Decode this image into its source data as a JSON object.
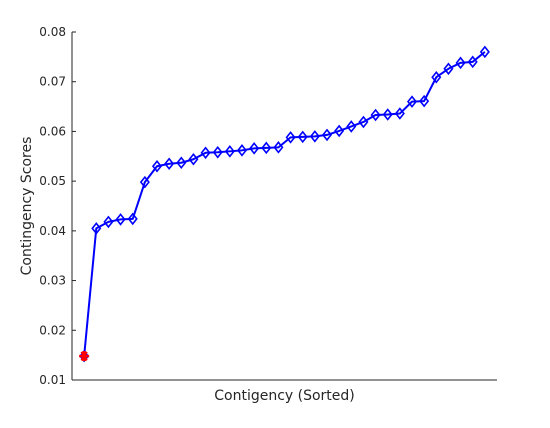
{
  "chart_data": {
    "type": "line",
    "xlabel": "Contigency (Sorted)",
    "ylabel": "Contingency Scores",
    "ylim": [
      0.01,
      0.08
    ],
    "yticks": [
      0.01,
      0.02,
      0.03,
      0.04,
      0.05,
      0.06,
      0.07,
      0.08
    ],
    "ytick_labels": [
      "0.01",
      "0.02",
      "0.03",
      "0.04",
      "0.05",
      "0.06",
      "0.07",
      "0.08"
    ],
    "xlim": [
      0,
      35
    ],
    "show_xticks": false,
    "grid": false,
    "box": "left-bottom",
    "colors": {
      "series": "#0000ff",
      "highlight": "#ff0000",
      "axis": "#262626"
    },
    "series": [
      {
        "marker": "diamond",
        "x": [
          1,
          2,
          3,
          4,
          5,
          6,
          7,
          8,
          9,
          10,
          11,
          12,
          13,
          14,
          15,
          16,
          17,
          18,
          19,
          20,
          21,
          22,
          23,
          24,
          25,
          26,
          27,
          28,
          29,
          30,
          31,
          32,
          33,
          34
        ],
        "values": [
          0.0148,
          0.0405,
          0.0418,
          0.0423,
          0.0424,
          0.0498,
          0.053,
          0.0535,
          0.0537,
          0.0544,
          0.0557,
          0.0558,
          0.056,
          0.0562,
          0.0566,
          0.0567,
          0.0568,
          0.0588,
          0.0589,
          0.059,
          0.0593,
          0.0601,
          0.061,
          0.0619,
          0.0633,
          0.0634,
          0.0636,
          0.066,
          0.0661,
          0.0709,
          0.0726,
          0.0738,
          0.074,
          0.076
        ]
      },
      {
        "marker": "asterisk",
        "x": [
          1
        ],
        "values": [
          0.0148
        ]
      }
    ]
  }
}
